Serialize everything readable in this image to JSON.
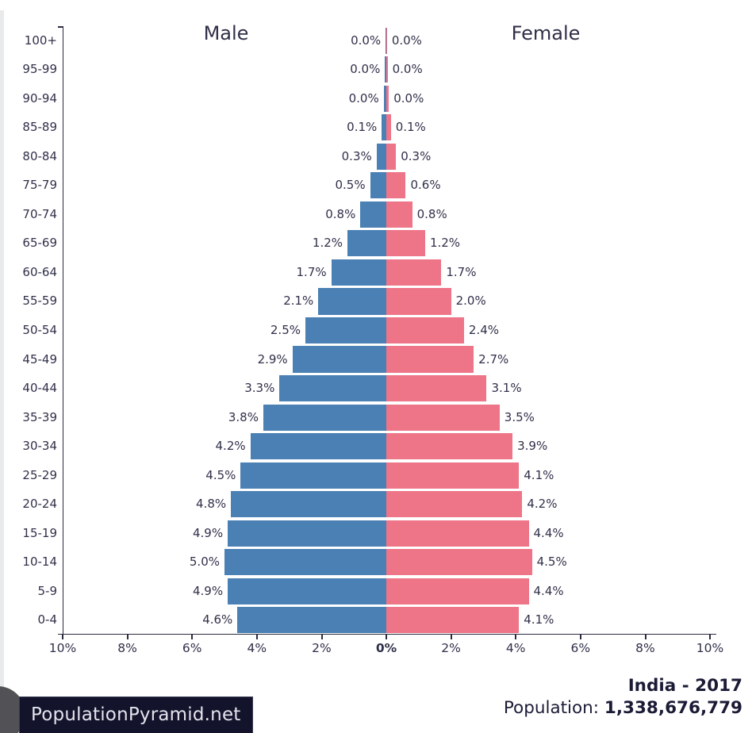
{
  "chart_data": {
    "type": "bar",
    "subtype": "population-pyramid",
    "title": "India - 2017",
    "left_series_label": "Male",
    "right_series_label": "Female",
    "categories_top_to_bottom": [
      "100+",
      "95-99",
      "90-94",
      "85-89",
      "80-84",
      "75-79",
      "70-74",
      "65-69",
      "60-64",
      "55-59",
      "50-54",
      "45-49",
      "40-44",
      "35-39",
      "30-34",
      "25-29",
      "20-24",
      "15-19",
      "10-14",
      "5-9",
      "0-4"
    ],
    "series": [
      {
        "name": "Male",
        "values_pct": [
          0.0,
          0.0,
          0.0,
          0.1,
          0.3,
          0.5,
          0.8,
          1.2,
          1.7,
          2.1,
          2.5,
          2.9,
          3.3,
          3.8,
          4.2,
          4.5,
          4.8,
          4.9,
          5.0,
          4.9,
          4.6
        ],
        "labels": [
          "0.0%",
          "0.0%",
          "0.0%",
          "0.1%",
          "0.3%",
          "0.5%",
          "0.8%",
          "1.2%",
          "1.7%",
          "2.1%",
          "2.5%",
          "2.9%",
          "3.3%",
          "3.8%",
          "4.2%",
          "4.5%",
          "4.8%",
          "4.9%",
          "5.0%",
          "4.9%",
          "4.6%"
        ],
        "render_pct": [
          0.02,
          0.04,
          0.08,
          0.14,
          0.3,
          0.5,
          0.8,
          1.2,
          1.7,
          2.1,
          2.5,
          2.9,
          3.3,
          3.8,
          4.2,
          4.5,
          4.8,
          4.9,
          5.0,
          4.9,
          4.6
        ]
      },
      {
        "name": "Female",
        "values_pct": [
          0.0,
          0.0,
          0.0,
          0.1,
          0.3,
          0.6,
          0.8,
          1.2,
          1.7,
          2.0,
          2.4,
          2.7,
          3.1,
          3.5,
          3.9,
          4.1,
          4.2,
          4.4,
          4.5,
          4.4,
          4.1
        ],
        "labels": [
          "0.0%",
          "0.0%",
          "0.0%",
          "0.1%",
          "0.3%",
          "0.6%",
          "0.8%",
          "1.2%",
          "1.7%",
          "2.0%",
          "2.4%",
          "2.7%",
          "3.1%",
          "3.5%",
          "3.9%",
          "4.1%",
          "4.2%",
          "4.4%",
          "4.5%",
          "4.4%",
          "4.1%"
        ],
        "render_pct": [
          0.02,
          0.04,
          0.08,
          0.14,
          0.3,
          0.6,
          0.8,
          1.2,
          1.7,
          2.0,
          2.4,
          2.7,
          3.1,
          3.5,
          3.9,
          4.1,
          4.2,
          4.4,
          4.5,
          4.4,
          4.1
        ]
      }
    ],
    "x_axis": {
      "tick_values": [
        -10,
        -8,
        -6,
        -4,
        -2,
        0,
        2,
        4,
        6,
        8,
        10
      ],
      "tick_labels": [
        "10%",
        "8%",
        "6%",
        "4%",
        "2%",
        "0%",
        "2%",
        "4%",
        "6%",
        "8%",
        "10%"
      ],
      "xlim_pct": [
        -10,
        10
      ],
      "grid": false,
      "unit": "percent of total population"
    },
    "colors": {
      "male_bar": "#4a80b4",
      "female_bar": "#ee7487",
      "axis": "#2b2b40",
      "tick_text": "#30304a",
      "value_text": "#30304a",
      "series_title_text": "#2f2f48"
    }
  },
  "caption": {
    "country_year": "India - 2017",
    "population_label": "Population: ",
    "population_value": "1,338,676,779",
    "text_color": "#1b1b36"
  },
  "branding": {
    "site_name": "PopulationPyramid.net",
    "badge_bg": "#13132b",
    "badge_text_color": "#e4e4ee"
  },
  "decor": {
    "left_strip_color": "#e9eaec",
    "fab_circle_color": "#515156"
  }
}
